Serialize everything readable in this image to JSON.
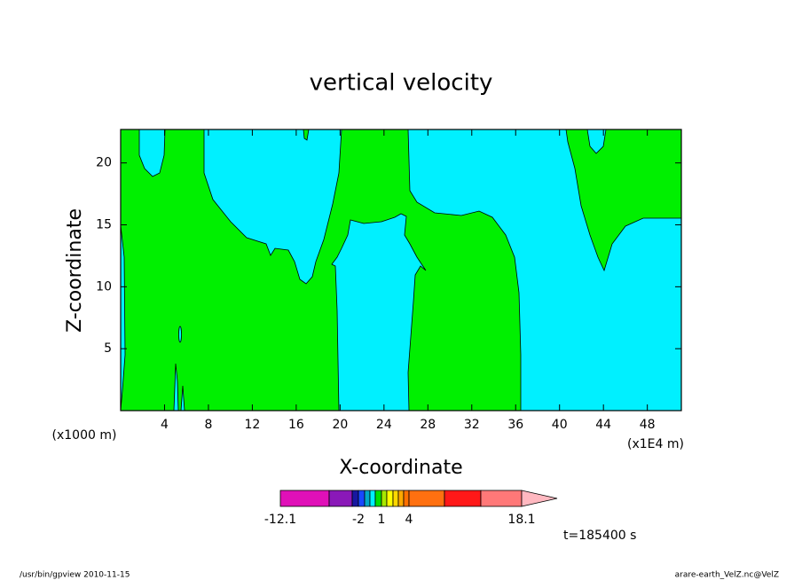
{
  "chart_data": {
    "type": "contour",
    "title": "vertical velocity",
    "x_label": "X-coordinate",
    "y_label": "Z-coordinate",
    "x_unit_left": "(x1000 m)",
    "x_unit_right": "(x1E4 m)",
    "xlim": [
      0,
      51.1
    ],
    "ylim": [
      0,
      22.7
    ],
    "xticks": [
      4,
      8,
      12,
      16,
      20,
      24,
      28,
      32,
      36,
      40,
      44,
      48
    ],
    "yticks": [
      5,
      10,
      15,
      20
    ],
    "colorbar": {
      "levels": [
        -12.1,
        -7,
        -3,
        -2,
        -1,
        0,
        0.5,
        1,
        1.5,
        2,
        2.5,
        3,
        4,
        8,
        13,
        18.1
      ],
      "colors": [
        "#e010b8",
        "#8a18b8",
        "#1818a0",
        "#1848ff",
        "#00a8c8",
        "#00f0ff",
        "#00e000",
        "#a8e800",
        "#ffff00",
        "#ffd800",
        "#ffa800",
        "#ff7000",
        "#ff7010",
        "#ff1818",
        "#ff7878",
        "#ffb8c0"
      ],
      "ticks": [
        -12.1,
        -2,
        1,
        4,
        18.1
      ]
    },
    "time_label": "t=185400 s",
    "footer_left": "/usr/bin/gpview   2010-11-15",
    "footer_right": "arare-earth_VelZ.nc@VelZ",
    "region_colors": {
      "positive": "#00f000",
      "negative": "#00f0ff"
    }
  }
}
